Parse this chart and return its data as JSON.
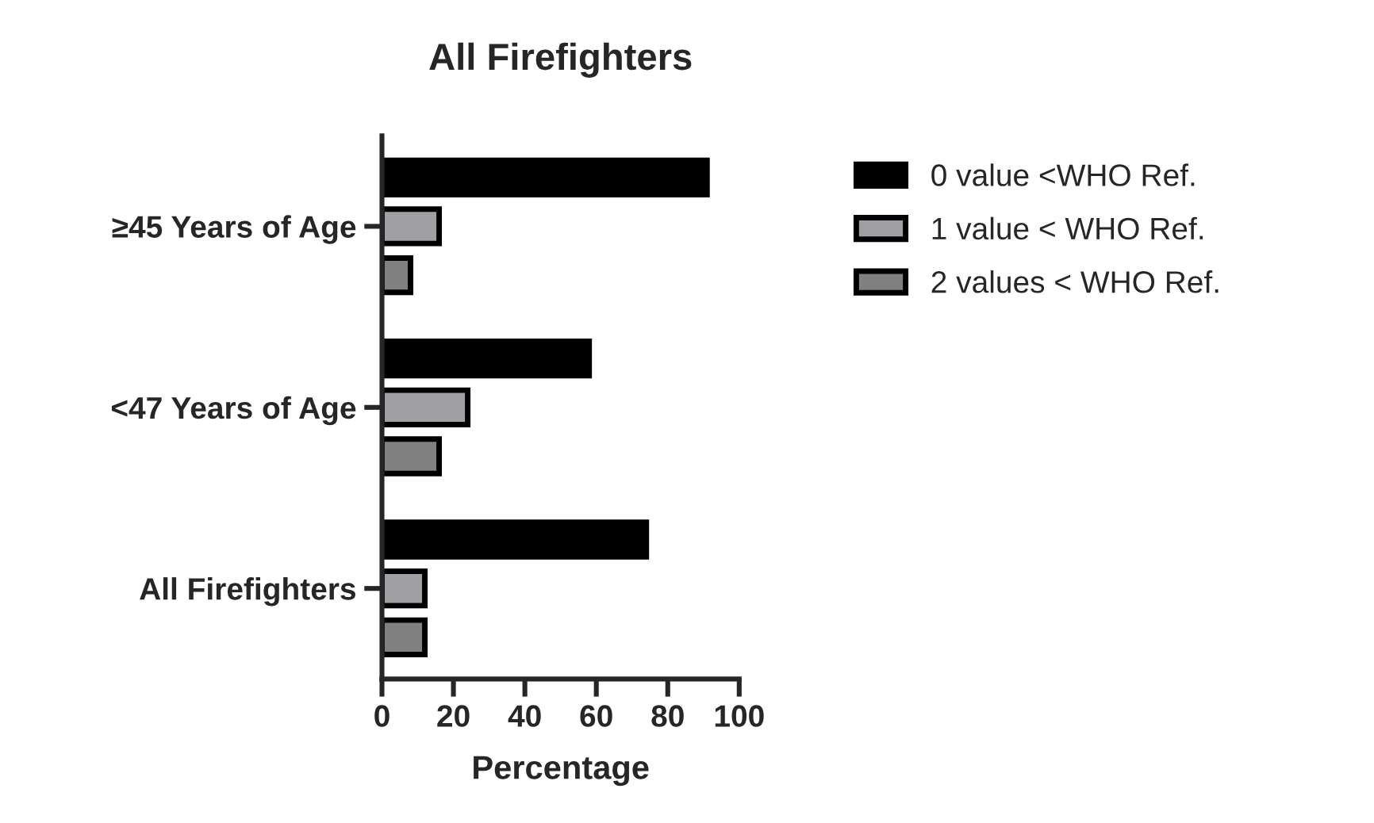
{
  "chart_data": {
    "type": "bar",
    "orientation": "horizontal",
    "title": "All Firefighters",
    "xlabel": "Percentage",
    "categories": [
      "≥45 Years of Age",
      "<47 Years of Age",
      "All Firefighters"
    ],
    "series": [
      {
        "name": "0 value <WHO Ref.",
        "color": "#000000",
        "values": [
          91,
          58,
          74
        ]
      },
      {
        "name": "1 value < WHO Ref.",
        "color": "#a0a0a4",
        "values": [
          16,
          24,
          12
        ]
      },
      {
        "name": "2 values < WHO Ref.",
        "color": "#808080",
        "values": [
          8,
          16,
          12
        ]
      }
    ],
    "xlim": [
      0,
      100
    ],
    "xticks": [
      0,
      20,
      40,
      60,
      80,
      100
    ],
    "grid": false,
    "legend": "top right"
  }
}
